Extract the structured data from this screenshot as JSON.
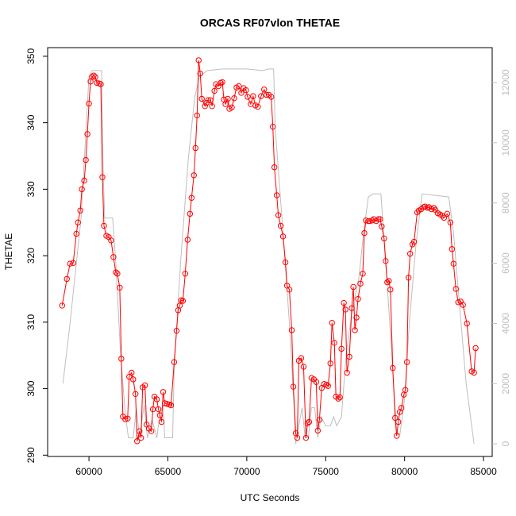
{
  "chart_data": {
    "type": "line",
    "title": "ORCAS RF07vlon THETAE",
    "xlabel": "UTC Seconds",
    "ylabel": "THETAE",
    "xlim": [
      57380,
      85550
    ],
    "xticks": [
      60000,
      65000,
      70000,
      75000,
      80000,
      85000
    ],
    "ylim": [
      289.8,
      351.3
    ],
    "yticks": [
      290,
      300,
      310,
      320,
      330,
      340,
      350
    ],
    "y2lim": [
      -420,
      13160
    ],
    "y2ticks": [
      0,
      2000,
      4000,
      6000,
      8000,
      10000,
      12000
    ],
    "y2color": "#bebebe",
    "series": [
      {
        "color": "#ff0000",
        "marker": "circle",
        "x": [
          58300,
          58600,
          58800,
          59000,
          59200,
          59300,
          59450,
          59550,
          59700,
          59800,
          59900,
          60000,
          60100,
          60200,
          60300,
          60400,
          60500,
          60650,
          60750,
          60850,
          60950,
          61100,
          61250,
          61400,
          61550,
          61700,
          61800,
          61950,
          62050,
          62150,
          62300,
          62450,
          62550,
          62700,
          62800,
          62950,
          63050,
          63200,
          63300,
          63400,
          63550,
          63650,
          63800,
          63950,
          64050,
          64150,
          64300,
          64400,
          64500,
          64600,
          64700,
          64800,
          64950,
          65100,
          65200,
          65400,
          65550,
          65650,
          65750,
          65850,
          65950,
          66100,
          66250,
          66400,
          66500,
          66650,
          66750,
          66850,
          66950,
          67050,
          67150,
          67350,
          67450,
          67550,
          67700,
          67800,
          67950,
          68050,
          68200,
          68350,
          68450,
          68550,
          68650,
          68800,
          68900,
          69050,
          69200,
          69350,
          69500,
          69650,
          69800,
          69950,
          70050,
          70250,
          70400,
          70550,
          70700,
          70900,
          71100,
          71250,
          71400,
          71550,
          71650,
          71750,
          71900,
          72000,
          72150,
          72300,
          72450,
          72550,
          72700,
          72850,
          72950,
          73100,
          73200,
          73300,
          73450,
          73600,
          73750,
          73850,
          73950,
          74100,
          74250,
          74400,
          74500,
          74600,
          74750,
          74900,
          75050,
          75150,
          75300,
          75400,
          75550,
          75650,
          75800,
          75900,
          76000,
          76150,
          76250,
          76350,
          76500,
          76650,
          76750,
          76850,
          76950,
          77050,
          77200,
          77350,
          77450,
          77550,
          77700,
          77800,
          77950,
          78050,
          78200,
          78350,
          78450,
          78550,
          78700,
          78800,
          78900,
          79000,
          79100,
          79250,
          79400,
          79500,
          79600,
          79700,
          79800,
          79950,
          80050,
          80150,
          80250,
          80350,
          80500,
          80600,
          80800,
          80900,
          81050,
          81200,
          81300,
          81450,
          81550,
          81700,
          81850,
          81950,
          82100,
          82250,
          82400,
          82500,
          82700,
          82900,
          83000,
          83100,
          83250,
          83400,
          83550,
          83700,
          83950,
          84250,
          84400,
          84500
        ],
        "values": [
          312.5,
          316.5,
          318.8,
          318.9,
          323.3,
          325,
          326.8,
          330,
          331.3,
          334.4,
          338.3,
          342.9,
          346.2,
          346.9,
          347.1,
          346.9,
          346,
          345.9,
          345.8,
          331.8,
          324.5,
          323,
          322.8,
          322.3,
          319.8,
          317.5,
          317.3,
          315.2,
          304.5,
          295.8,
          295.4,
          295.5,
          301.8,
          302.4,
          301.4,
          299.2,
          292.1,
          293.6,
          292.6,
          300.2,
          300.5,
          294.6,
          294,
          293.6,
          296.9,
          298.8,
          298.4,
          296.9,
          296,
          295,
          299.5,
          297.8,
          297.7,
          297.6,
          297.5,
          304,
          308.7,
          311.8,
          312.5,
          313.3,
          313.2,
          317.3,
          322.4,
          326.3,
          328.7,
          332.1,
          336.2,
          341.1,
          349.4,
          347.4,
          343.6,
          342.5,
          343,
          343.4,
          343.4,
          342.5,
          344.8,
          345.8,
          345.5,
          346,
          346.1,
          343.5,
          342.8,
          343.6,
          342.1,
          342.3,
          343.7,
          345.3,
          345.5,
          344.5,
          345.2,
          344.9,
          343.9,
          342.8,
          344,
          342.6,
          342.4,
          344,
          345,
          344.2,
          344.2,
          343.9,
          339.4,
          333.3,
          329.1,
          326.1,
          324.5,
          322.9,
          319,
          315.5,
          314.9,
          308.8,
          300.3,
          293.3,
          292.6,
          304.2,
          304.6,
          303.3,
          292.6,
          294.8,
          295,
          301.6,
          301.4,
          301,
          293.7,
          295.3,
          300.1,
          300.7,
          300.6,
          300.4,
          303.8,
          309.9,
          306.9,
          298.8,
          298.5,
          298.7,
          306,
          312.9,
          311.9,
          302.4,
          304.8,
          312.1,
          315.3,
          308.8,
          310.7,
          313.5,
          315.8,
          317.3,
          323.4,
          325.3,
          325.2,
          325.2,
          325.3,
          325.5,
          325.2,
          325.5,
          325.5,
          324.4,
          322.6,
          319.2,
          316,
          316.2,
          314.9,
          303.1,
          295.6,
          292.9,
          295,
          296.5,
          297.1,
          299.1,
          299.8,
          304,
          316.7,
          320.3,
          321.7,
          322.1,
          326.5,
          326.8,
          327,
          327.3,
          327.4,
          327.2,
          327.3,
          327,
          327.2,
          326.9,
          326.4,
          326.2,
          326,
          325.7,
          326.3,
          325,
          321,
          318.8,
          315,
          313,
          313.1,
          312.6,
          309.8,
          302.6,
          302.4,
          306.1
        ]
      },
      {
        "color": "#bebebe",
        "axis": "y2",
        "x": [
          58350,
          58800,
          59500,
          60000,
          60200,
          60800,
          60900,
          61000,
          61500,
          61700,
          62000,
          62300,
          62500,
          62800,
          63000,
          63200,
          63500,
          63700,
          64000,
          64300,
          64500,
          64700,
          64800,
          65300,
          65400,
          65800,
          66300,
          66700,
          67000,
          67500,
          68500,
          70000,
          71000,
          71400,
          71700,
          71800,
          72300,
          72700,
          73000,
          73100,
          73300,
          73500,
          73700,
          73900,
          74100,
          74300,
          74500,
          74700,
          75000,
          75300,
          75500,
          75700,
          76000,
          76300,
          76700,
          77100,
          77400,
          77700,
          78000,
          78500,
          78800,
          79000,
          79300,
          79500,
          79700,
          80000,
          80300,
          80700,
          81100,
          82000,
          82800,
          83100,
          83500,
          83900,
          84200,
          84400
        ],
        "values": [
          2000,
          4000,
          7500,
          12200,
          12400,
          12400,
          9000,
          7500,
          7500,
          6000,
          3000,
          1000,
          200,
          200,
          1200,
          200,
          1300,
          200,
          800,
          200,
          1000,
          1300,
          200,
          200,
          2500,
          6000,
          9500,
          11500,
          12200,
          12400,
          12450,
          12450,
          12400,
          12450,
          12450,
          10500,
          7000,
          4000,
          1200,
          0,
          600,
          1200,
          200,
          200,
          1200,
          1200,
          200,
          900,
          600,
          600,
          900,
          600,
          900,
          3000,
          4500,
          5500,
          7000,
          8200,
          8300,
          8300,
          6000,
          4500,
          2000,
          400,
          300,
          1500,
          4000,
          6500,
          8300,
          8250,
          8200,
          7000,
          4500,
          2000,
          800,
          0
        ]
      }
    ]
  }
}
